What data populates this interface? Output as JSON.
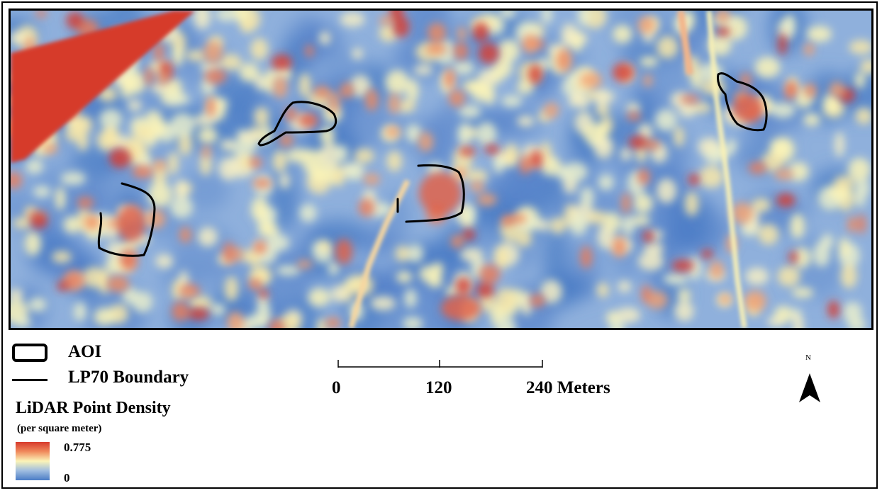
{
  "legend": {
    "aoi_label": "AOI",
    "boundary_label": "LP70 Boundary",
    "density_title": "LiDAR Point Density",
    "density_unit": "(per square meter)",
    "density_max": "0.775",
    "density_min": "0"
  },
  "scale": {
    "tick_0": "0",
    "tick_1": "120",
    "tick_2": "240 Meters"
  },
  "north": {
    "label": "N"
  },
  "colors": {
    "high": "#d73a2c",
    "mid": "#fbf4b8",
    "low": "#4a7cc6",
    "boundary": "#000000"
  }
}
